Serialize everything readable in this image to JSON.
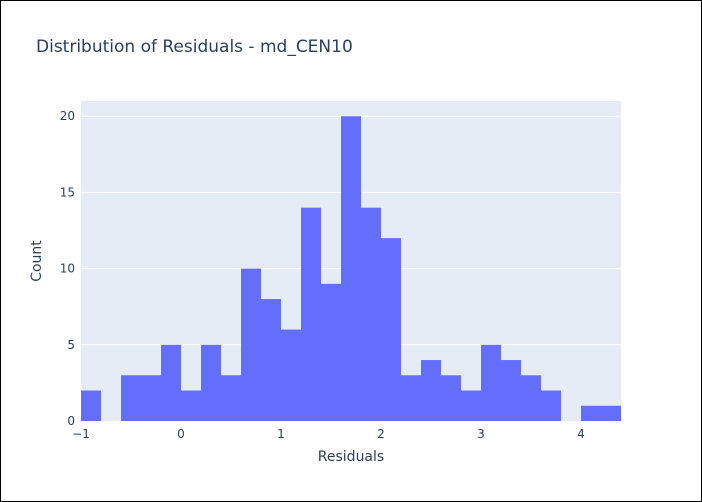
{
  "chart_data": {
    "type": "bar",
    "title": "Distribution of Residuals - md_CEN10",
    "xlabel": "Residuals",
    "ylabel": "Count",
    "xlim": [
      -1,
      4.4
    ],
    "ylim": [
      0,
      21
    ],
    "bin_width": 0.2,
    "bin_starts": [
      -1.0,
      -0.8,
      -0.6,
      -0.4,
      -0.2,
      0.0,
      0.2,
      0.4,
      0.6,
      0.8,
      1.0,
      1.2,
      1.4,
      1.6,
      1.8,
      2.0,
      2.2,
      2.4,
      2.6,
      2.8,
      3.0,
      3.2,
      3.4,
      3.6,
      3.8,
      4.0,
      4.2
    ],
    "values": [
      2,
      0,
      3,
      3,
      5,
      2,
      5,
      3,
      10,
      8,
      6,
      14,
      9,
      20,
      14,
      12,
      3,
      4,
      3,
      2,
      5,
      4,
      3,
      2,
      0,
      1,
      1
    ],
    "x_ticks": [
      -1,
      0,
      1,
      2,
      3,
      4
    ],
    "x_tick_labels": [
      "−1",
      "0",
      "1",
      "2",
      "3",
      "4"
    ],
    "y_ticks": [
      0,
      5,
      10,
      15,
      20
    ],
    "y_tick_labels": [
      "0",
      "5",
      "10",
      "15",
      "20"
    ],
    "bar_color": "#636efa",
    "plot_bg": "#e5ecf6",
    "grid": true,
    "legend": "none"
  }
}
